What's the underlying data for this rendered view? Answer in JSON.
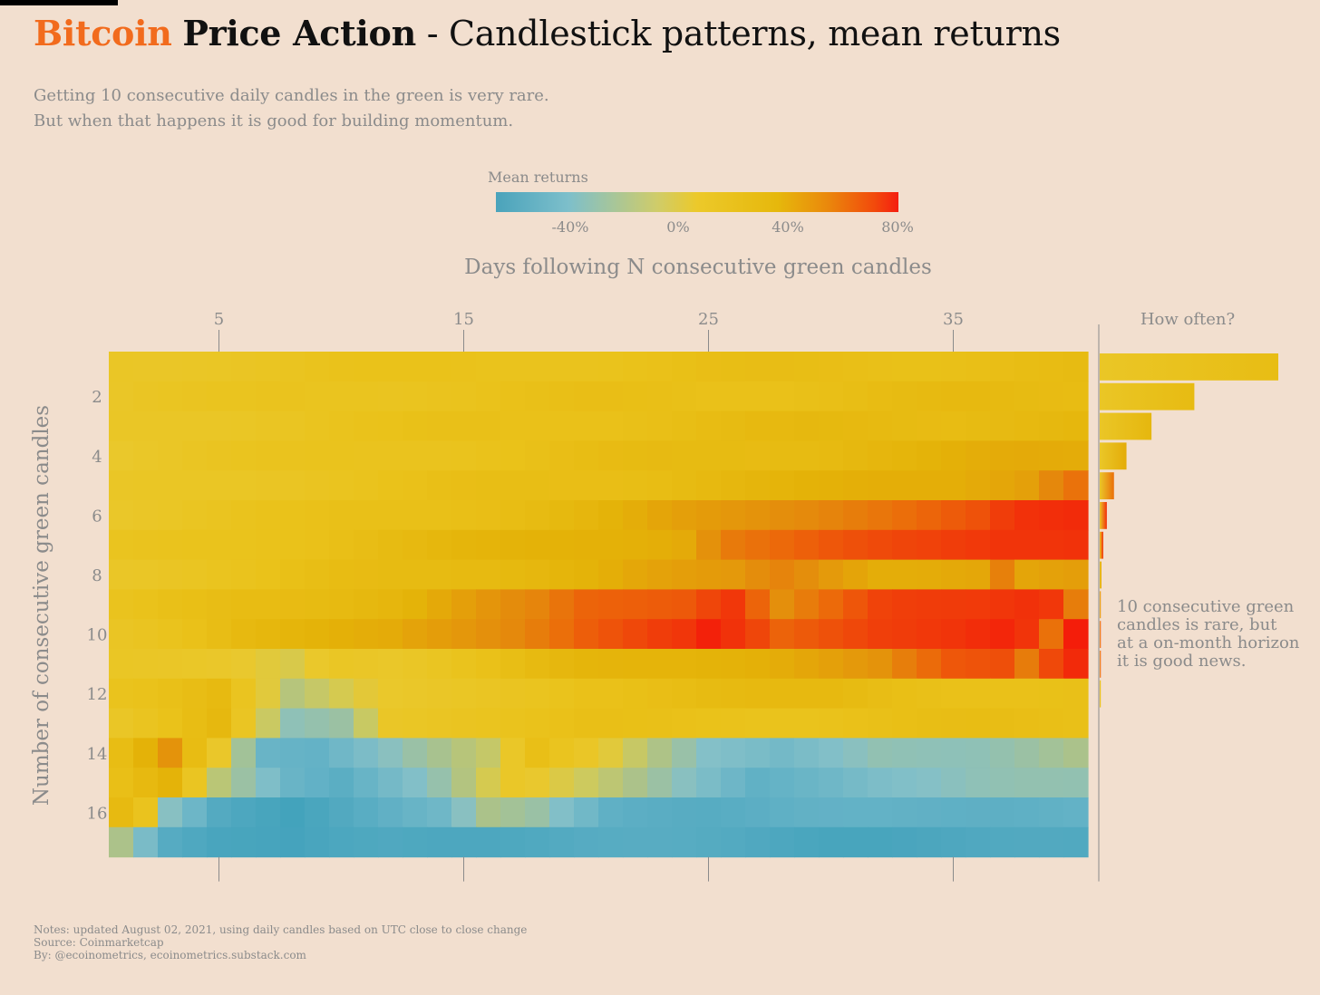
{
  "header": {
    "title_accent": "Bitcoin",
    "title_strong": "Price Action",
    "title_rest": "- Candlestick patterns, mean returns",
    "subtitle_line1": "Getting 10 consecutive daily candles in the green is very rare.",
    "subtitle_line2": "But when that happens it is good for building momentum."
  },
  "legend": {
    "title": "Mean returns",
    "ticks": [
      "-40%",
      "0%",
      "40%",
      "80%"
    ]
  },
  "annotation": {
    "line1": "10 consecutive green",
    "line2": "candles is rare, but",
    "line3": "at a on-month horizon",
    "line4": "it is good news."
  },
  "footer": {
    "notes": "Notes: updated August 02, 2021, using daily candles based on UTC close to close change",
    "source": "Source: Coinmarketcap",
    "by": "By: @ecoinometrics, ecoinometrics.substack.com"
  },
  "colors": {
    "background": "#f2dfcf",
    "accent": "#f26b1d",
    "text_muted": "#8b8b8b"
  },
  "chart_data": {
    "type": "heatmap",
    "xlabel": "Days following N consecutive green candles",
    "ylabel": "Number of consecutive green candles",
    "x_ticks": [
      5,
      15,
      25,
      35
    ],
    "y_ticks": [
      2,
      4,
      6,
      8,
      10,
      12,
      14,
      16
    ],
    "x_range": [
      1,
      40
    ],
    "y_range": [
      1,
      17
    ],
    "value_unit": "%",
    "colorscale_range": [
      -65,
      85
    ],
    "row_anchors": [
      {
        "n": 1,
        "days": [
          1,
          10,
          20,
          30,
          40
        ],
        "values": [
          5,
          12,
          15,
          18,
          20
        ]
      },
      {
        "n": 2,
        "days": [
          1,
          10,
          20,
          30,
          40
        ],
        "values": [
          5,
          12,
          16,
          19,
          22
        ]
      },
      {
        "n": 3,
        "days": [
          1,
          10,
          20,
          30,
          40
        ],
        "values": [
          4,
          12,
          18,
          22,
          25
        ]
      },
      {
        "n": 4,
        "days": [
          1,
          10,
          20,
          30,
          40
        ],
        "values": [
          3,
          12,
          18,
          25,
          32
        ]
      },
      {
        "n": 5,
        "days": [
          1,
          10,
          20,
          30,
          35,
          38,
          39,
          40
        ],
        "values": [
          3,
          12,
          20,
          28,
          33,
          38,
          45,
          52
        ]
      },
      {
        "n": 6,
        "days": [
          1,
          10,
          20,
          26,
          32,
          36,
          38,
          40
        ],
        "values": [
          5,
          15,
          25,
          38,
          52,
          60,
          72,
          76
        ]
      },
      {
        "n": 7,
        "days": [
          1,
          10,
          18,
          24,
          26,
          30,
          34,
          37,
          40
        ],
        "values": [
          8,
          20,
          28,
          35,
          50,
          58,
          66,
          75,
          76
        ]
      },
      {
        "n": 8,
        "days": [
          1,
          10,
          20,
          26,
          28,
          32,
          36,
          37,
          38,
          40
        ],
        "values": [
          6,
          18,
          30,
          36,
          45,
          34,
          33,
          45,
          32,
          34
        ]
      },
      {
        "n": 9,
        "days": [
          1,
          6,
          12,
          18,
          20,
          24,
          26,
          28,
          32,
          36,
          38,
          39,
          40
        ],
        "values": [
          10,
          20,
          28,
          42,
          55,
          62,
          74,
          42,
          64,
          70,
          76,
          74,
          50
        ]
      },
      {
        "n": 10,
        "days": [
          1,
          6,
          12,
          17,
          20,
          24,
          25,
          28,
          32,
          35,
          37,
          38,
          39,
          40
        ],
        "values": [
          8,
          25,
          30,
          45,
          60,
          70,
          80,
          55,
          70,
          75,
          80,
          72,
          50,
          82
        ]
      },
      {
        "n": 11,
        "days": [
          1,
          8,
          10,
          12,
          16,
          20,
          26,
          32,
          35,
          37,
          38,
          39,
          40
        ],
        "values": [
          5,
          -5,
          8,
          5,
          15,
          25,
          32,
          38,
          58,
          62,
          48,
          66,
          80
        ]
      },
      {
        "n": 12,
        "days": [
          1,
          5,
          8,
          11,
          14,
          20,
          30,
          40
        ],
        "values": [
          12,
          25,
          -14,
          -4,
          2,
          18,
          22,
          15
        ]
      },
      {
        "n": 13,
        "days": [
          1,
          5,
          8,
          10,
          12,
          14,
          20,
          30,
          40
        ],
        "values": [
          6,
          22,
          -28,
          -22,
          6,
          10,
          15,
          16,
          18
        ]
      },
      {
        "n": 14,
        "days": [
          1,
          3,
          5,
          7,
          9,
          12,
          16,
          18,
          21,
          25,
          28,
          32,
          36,
          40
        ],
        "values": [
          18,
          40,
          4,
          -40,
          -44,
          -30,
          -12,
          18,
          0,
          -30,
          -40,
          -26,
          -24,
          -18
        ]
      },
      {
        "n": 15,
        "days": [
          1,
          3,
          5,
          8,
          10,
          14,
          17,
          20,
          24,
          27,
          32,
          40
        ],
        "values": [
          20,
          30,
          -15,
          -45,
          -50,
          -22,
          5,
          -10,
          -30,
          -45,
          -32,
          -26
        ]
      },
      {
        "n": 16,
        "days": [
          1,
          2,
          3,
          5,
          8,
          10,
          14,
          16,
          18,
          21,
          25,
          40
        ],
        "values": [
          20,
          10,
          -30,
          -52,
          -58,
          -52,
          -42,
          -20,
          -24,
          -45,
          -50,
          -44
        ]
      },
      {
        "n": 17,
        "days": [
          1,
          3,
          5,
          8,
          12,
          20,
          30,
          40
        ],
        "values": [
          -15,
          -50,
          -58,
          -62,
          -55,
          -52,
          -56,
          -56
        ]
      }
    ],
    "frequency_panel": {
      "title": "How often?",
      "values": [
        100,
        53,
        29,
        15,
        8,
        4,
        2,
        1,
        0.5,
        0.3,
        0.1,
        0.05,
        0,
        0,
        0,
        0,
        0
      ]
    }
  }
}
